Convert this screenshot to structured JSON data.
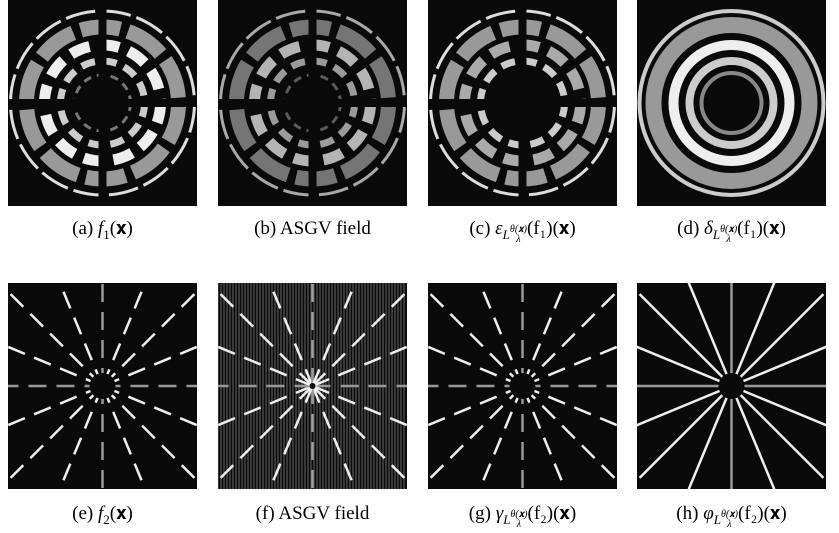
{
  "figure": {
    "panels": [
      {
        "label": "(a)",
        "math": {
          "base": "f",
          "sub": "1",
          "tail": "(𝐱)"
        }
      },
      {
        "label": "(b)",
        "text": "ASGV field"
      },
      {
        "label": "(c)",
        "math": {
          "base": "ε",
          "sub": "L",
          "subsub": "λ",
          "subsup": "θ(𝐱)",
          "tail": "(f₁)(𝐱)"
        }
      },
      {
        "label": "(d)",
        "math": {
          "base": "δ",
          "sub": "L",
          "subsub": "λ",
          "subsup": "θ(𝐱)",
          "tail": "(f₁)(𝐱)"
        }
      },
      {
        "label": "(e)",
        "math": {
          "base": "f",
          "sub": "2",
          "tail": "(𝐱)"
        }
      },
      {
        "label": "(f)",
        "text": "ASGV field"
      },
      {
        "label": "(g)",
        "math": {
          "base": "γ",
          "sub": "L",
          "subsub": "λ",
          "subsup": "θ(𝐱)",
          "tail": "(f₂)(𝐱)"
        }
      },
      {
        "label": "(h)",
        "math": {
          "base": "φ",
          "sub": "L",
          "subsub": "λ",
          "subsup": "θ(𝐱)",
          "tail": "(f₂)(𝐱)"
        }
      }
    ]
  }
}
